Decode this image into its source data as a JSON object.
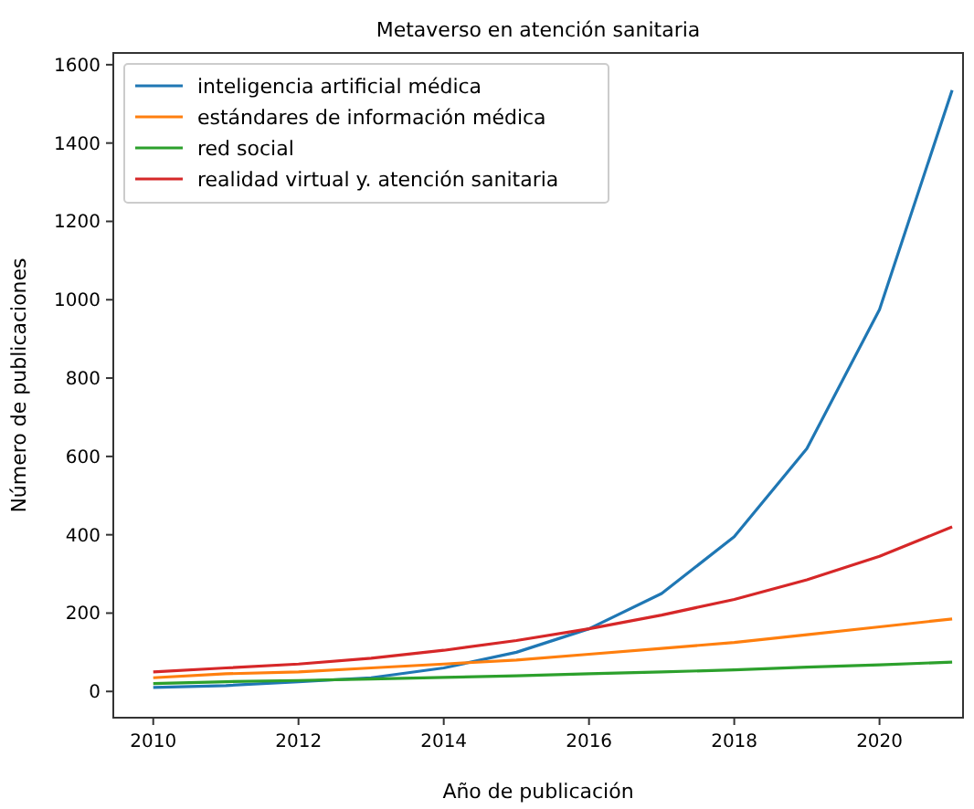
{
  "chart_data": {
    "type": "line",
    "title": "Metaverso en atención sanitaria",
    "xlabel": "Año de publicación",
    "ylabel": "Número de publicaciones",
    "x": [
      2010,
      2011,
      2012,
      2013,
      2014,
      2015,
      2016,
      2017,
      2018,
      2019,
      2020,
      2021
    ],
    "series": [
      {
        "name": "inteligencia artificial médica",
        "color": "#1f77b4",
        "values": [
          10,
          15,
          25,
          35,
          60,
          100,
          160,
          250,
          395,
          620,
          975,
          1535
        ]
      },
      {
        "name": "estándares de información médica",
        "color": "#ff7f0e",
        "values": [
          35,
          45,
          50,
          60,
          70,
          80,
          95,
          110,
          125,
          145,
          165,
          185
        ]
      },
      {
        "name": "red social",
        "color": "#2ca02c",
        "values": [
          20,
          25,
          28,
          32,
          36,
          40,
          45,
          50,
          55,
          62,
          68,
          75
        ]
      },
      {
        "name": "realidad virtual y. atención sanitaria",
        "color": "#d62728",
        "values": [
          50,
          60,
          70,
          85,
          105,
          130,
          160,
          195,
          235,
          285,
          345,
          420
        ]
      }
    ],
    "xlim": [
      2009.45,
      2021.15
    ],
    "xticks": [
      2010,
      2012,
      2014,
      2016,
      2018,
      2020
    ],
    "ylim": [
      -67,
      1630
    ],
    "yticks": [
      0,
      200,
      400,
      600,
      800,
      1000,
      1200,
      1400,
      1600
    ],
    "grid": false,
    "legend": "top left",
    "marker": "none",
    "line_style": "solid"
  }
}
